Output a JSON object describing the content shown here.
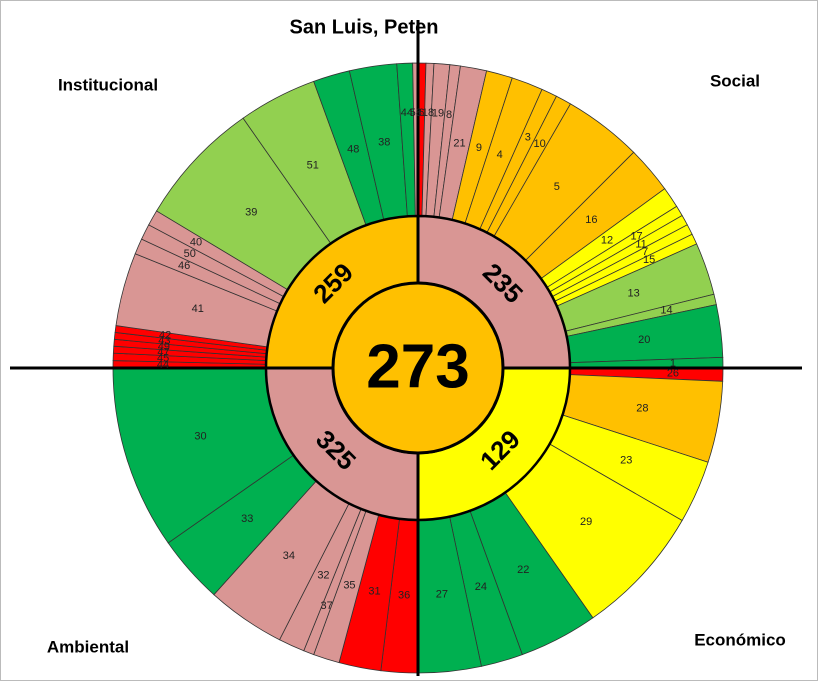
{
  "chart_data": {
    "type": "sunburst",
    "title": "San Luis, Peten",
    "center_value": 273,
    "center_color": "#ffc000",
    "quadrants": [
      {
        "name": "Social",
        "value": 235,
        "color": "#d99694",
        "segments": [
          {
            "label": "6",
            "color": "#ff0000",
            "weight": 1.5
          },
          {
            "label": "18",
            "color": "#d99694",
            "weight": 1.5
          },
          {
            "label": "19",
            "color": "#d99694",
            "weight": 3
          },
          {
            "label": "8",
            "color": "#d99694",
            "weight": 2
          },
          {
            "label": "21",
            "color": "#d99694",
            "weight": 5
          },
          {
            "label": "9",
            "color": "#ffc000",
            "weight": 5
          },
          {
            "label": "4",
            "color": "#ffc000",
            "weight": 6
          },
          {
            "label": "3",
            "color": "#ffc000",
            "weight": 3
          },
          {
            "label": "10",
            "color": "#ffc000",
            "weight": 3
          },
          {
            "label": "5",
            "color": "#ffc000",
            "weight": 15
          },
          {
            "label": "16",
            "color": "#ffc000",
            "weight": 9
          },
          {
            "label": "12",
            "color": "#ffff00",
            "weight": 4
          },
          {
            "label": "17",
            "color": "#ffff00",
            "weight": 2
          },
          {
            "label": "11",
            "color": "#ffff00",
            "weight": 2
          },
          {
            "label": "7",
            "color": "#ffff00",
            "weight": 2
          },
          {
            "label": "15",
            "color": "#ffff00",
            "weight": 2
          },
          {
            "label": "13",
            "color": "#92d050",
            "weight": 10
          },
          {
            "label": "14",
            "color": "#92d050",
            "weight": 2
          },
          {
            "label": "20",
            "color": "#00b050",
            "weight": 10
          },
          {
            "label": "1",
            "color": "#00b050",
            "weight": 2
          }
        ]
      },
      {
        "name": "Económico",
        "value": 129,
        "color": "#ffff00",
        "segments": [
          {
            "label": "26",
            "color": "#ff0000",
            "weight": 2.5
          },
          {
            "label": "28",
            "color": "#ffc000",
            "weight": 15.5
          },
          {
            "label": "23",
            "color": "#ffff00",
            "weight": 12
          },
          {
            "label": "29",
            "color": "#ffff00",
            "weight": 25
          },
          {
            "label": "22",
            "color": "#00b050",
            "weight": 15
          },
          {
            "label": "24",
            "color": "#00b050",
            "weight": 8
          },
          {
            "label": "27",
            "color": "#00b050",
            "weight": 12
          }
        ]
      },
      {
        "name": "Ambiental",
        "value": 325,
        "color": "#d99694",
        "segments": [
          {
            "label": "36",
            "color": "#ff0000",
            "weight": 7
          },
          {
            "label": "31",
            "color": "#ff0000",
            "weight": 8
          },
          {
            "label": "35",
            "color": "#d99694",
            "weight": 5
          },
          {
            "label": "37",
            "color": "#d99694",
            "weight": 2
          },
          {
            "label": "32",
            "color": "#d99694",
            "weight": 5
          },
          {
            "label": "34",
            "color": "#d99694",
            "weight": 15
          },
          {
            "label": "33",
            "color": "#00b050",
            "weight": 13
          },
          {
            "label": "30",
            "color": "#00b050",
            "weight": 35
          }
        ]
      },
      {
        "name": "Institucional",
        "value": 259,
        "color": "#ffc000",
        "segments": [
          {
            "label": "44",
            "color": "#ff0000",
            "weight": 1.4
          },
          {
            "label": "45",
            "color": "#ff0000",
            "weight": 1.4
          },
          {
            "label": "47",
            "color": "#ff0000",
            "weight": 1.3
          },
          {
            "label": "49",
            "color": "#ff0000",
            "weight": 1.3
          },
          {
            "label": "43",
            "color": "#ff0000",
            "weight": 1.3
          },
          {
            "label": "42",
            "color": "#ff0000",
            "weight": 1.3
          },
          {
            "label": "41",
            "color": "#d99694",
            "weight": 14
          },
          {
            "label": "46",
            "color": "#d99694",
            "weight": 3
          },
          {
            "label": "50",
            "color": "#d99694",
            "weight": 3
          },
          {
            "label": "40",
            "color": "#d99694",
            "weight": 3
          },
          {
            "label": "39",
            "color": "#92d050",
            "weight": 24
          },
          {
            "label": "51",
            "color": "#92d050",
            "weight": 15
          },
          {
            "label": "48",
            "color": "#00b050",
            "weight": 7
          },
          {
            "label": "38",
            "color": "#00b050",
            "weight": 9
          },
          {
            "label": "44",
            "color": "#00b050",
            "weight": 3
          },
          {
            "label": "58",
            "color": "#d99694",
            "weight": 1
          }
        ]
      }
    ]
  }
}
